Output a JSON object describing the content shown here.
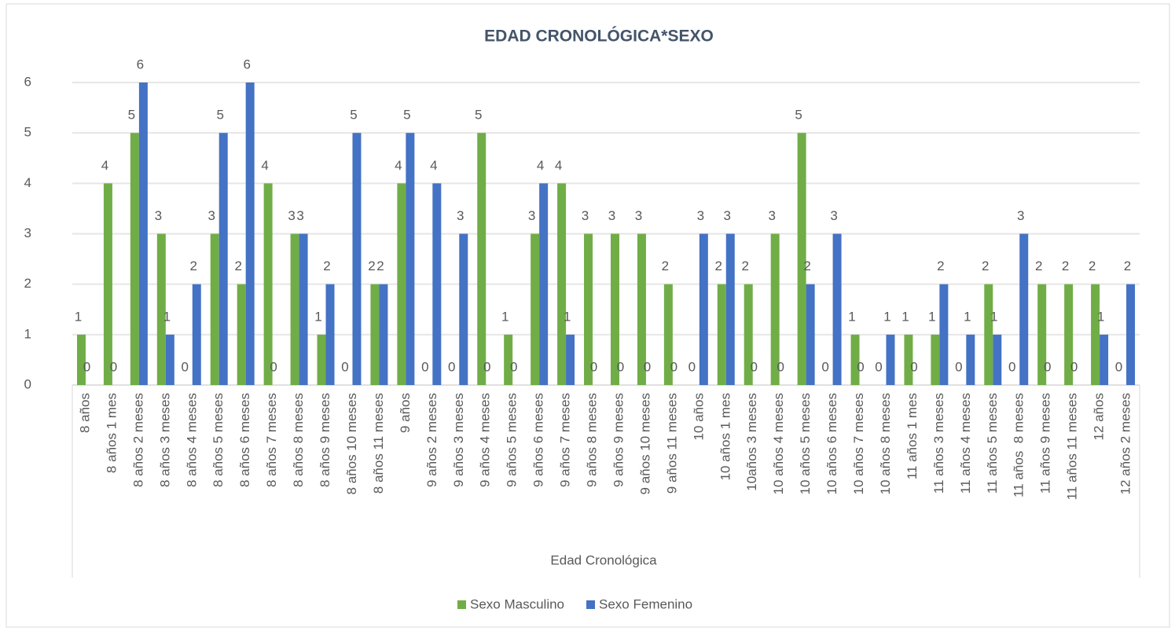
{
  "chart_data": {
    "type": "bar",
    "title": "EDAD CRONOLÓGICA*SEXO",
    "x_label": "Edad Cronológica",
    "categories": [
      "8 años",
      "8 años 1 mes",
      "8 años 2 meses",
      "8 años 3 meses",
      "8 años 4 meses",
      "8 años 5 meses",
      "8 años 6 meses",
      "8 años 7 meses",
      "8 años 8 meses",
      "8 años 9 meses",
      "8 años 10 meses",
      "8 años 11 meses",
      "9 años",
      "9 años 2 meses",
      "9 años 3 meses",
      "9 años 4 meses",
      "9 años 5 meses",
      "9 años 6 meses",
      "9 años 7 meses",
      "9 años 8 meses",
      "9 años 9 meses",
      "9 años 10 meses",
      "9 años 11 meses",
      "10 años",
      "10 años 1 mes",
      "10años 3 meses",
      "10 años 4 meses",
      "10 años 5 meses",
      "10 años 6 meses",
      "10 años 7 meses",
      "10 años 8 meses",
      "11 años 1 mes",
      "11 años 3 meses",
      "11 años 4 meses",
      "11 años 5 meses",
      "11 años  8 meses",
      "11 años 9 meses",
      "11 años 11 meses",
      "12 años",
      "12 años 2 meses"
    ],
    "series": [
      {
        "name": "Sexo Masculino",
        "color": "#70ad47",
        "values": [
          1,
          4,
          5,
          3,
          0,
          3,
          2,
          4,
          3,
          1,
          0,
          2,
          4,
          0,
          0,
          5,
          1,
          3,
          4,
          3,
          3,
          3,
          2,
          0,
          2,
          2,
          3,
          5,
          0,
          1,
          0,
          1,
          1,
          0,
          2,
          0,
          2,
          2,
          2,
          0
        ]
      },
      {
        "name": "Sexo Femenino",
        "color": "#4472c4",
        "values": [
          0,
          0,
          6,
          1,
          2,
          5,
          6,
          0,
          3,
          2,
          5,
          2,
          5,
          4,
          3,
          0,
          0,
          4,
          1,
          0,
          0,
          0,
          0,
          3,
          3,
          0,
          0,
          2,
          3,
          0,
          1,
          0,
          2,
          1,
          1,
          3,
          0,
          0,
          1,
          2
        ]
      }
    ],
    "ylim": [
      0,
      6
    ],
    "yticks": [
      0,
      1,
      2,
      3,
      4,
      5,
      6
    ],
    "grid": true,
    "legend": "bottom"
  }
}
